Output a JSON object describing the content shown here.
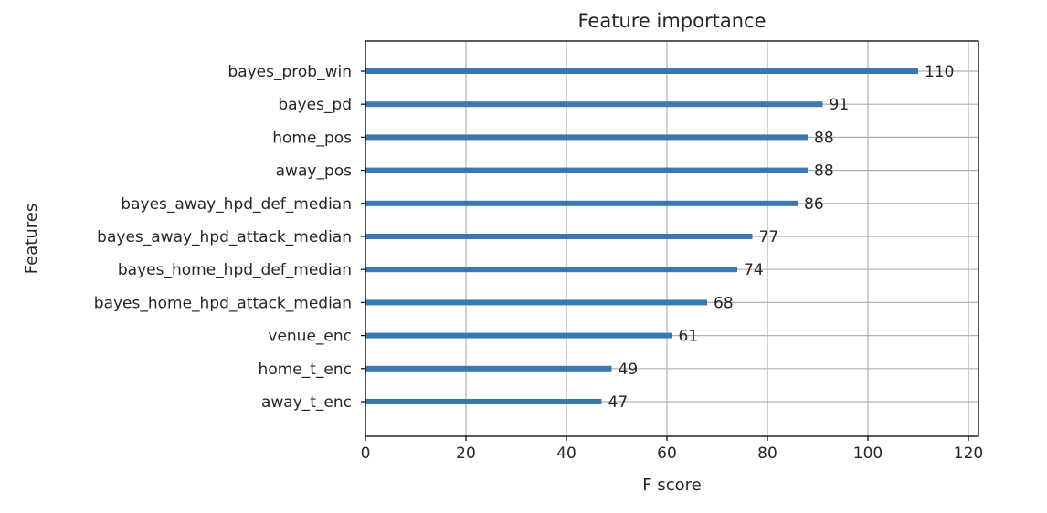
{
  "chart_data": {
    "type": "bar",
    "orientation": "horizontal",
    "title": "Feature importance",
    "xlabel": "F score",
    "ylabel": "Features",
    "xlim": [
      0,
      122
    ],
    "xticks": [
      0,
      20,
      40,
      60,
      80,
      100,
      120
    ],
    "grid": true,
    "bar_color": "#3a78b0",
    "categories": [
      "bayes_prob_win",
      "bayes_pd",
      "home_pos",
      "away_pos",
      "bayes_away_hpd_def_median",
      "bayes_away_hpd_attack_median",
      "bayes_home_hpd_def_median",
      "bayes_home_hpd_attack_median",
      "venue_enc",
      "home_t_enc",
      "away_t_enc"
    ],
    "values": [
      110,
      91,
      88,
      88,
      86,
      77,
      74,
      68,
      61,
      49,
      47
    ]
  }
}
